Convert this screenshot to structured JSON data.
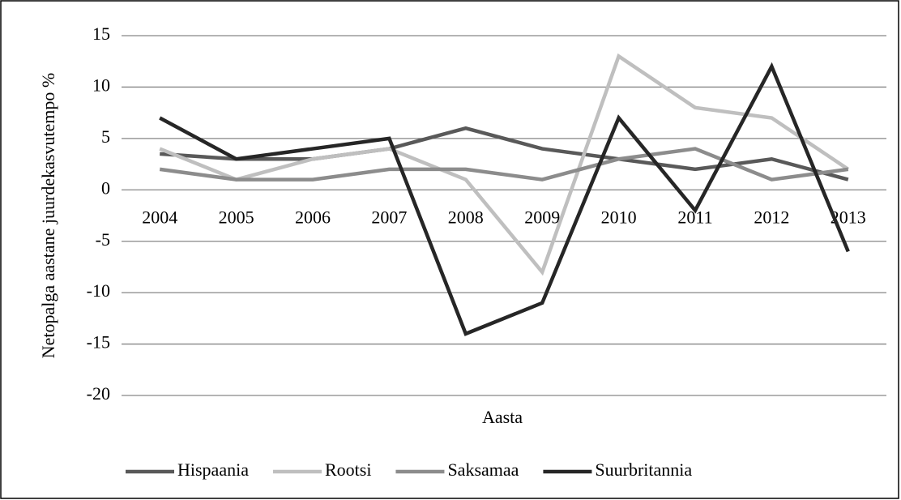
{
  "chart_data": {
    "type": "line",
    "y_label": "Netopalga aastane juurdekasvutempo %",
    "x_label": "Aasta",
    "categories": [
      "2004",
      "2005",
      "2006",
      "2007",
      "2008",
      "2009",
      "2010",
      "2011",
      "2012",
      "2013"
    ],
    "series": [
      {
        "name": "Hispaania",
        "color": "#595959",
        "values": [
          3.5,
          3,
          3,
          4,
          6,
          4,
          3,
          2,
          3,
          1
        ]
      },
      {
        "name": "Rootsi",
        "color": "#bfbfbf",
        "values": [
          4,
          1,
          3,
          4,
          1,
          -8,
          13,
          8,
          7,
          2
        ]
      },
      {
        "name": "Saksamaa",
        "color": "#8c8c8c",
        "values": [
          2,
          1,
          1,
          2,
          2,
          1,
          3,
          4,
          1,
          2
        ]
      },
      {
        "name": "Suurbritannia",
        "color": "#262626",
        "values": [
          7,
          3,
          4,
          5,
          -14,
          -11,
          7,
          -2,
          12,
          -6
        ]
      }
    ],
    "ylim": [
      -20,
      15
    ],
    "yticks": [
      -20,
      -15,
      -10,
      -5,
      0,
      5,
      10,
      15
    ],
    "grid": true
  }
}
